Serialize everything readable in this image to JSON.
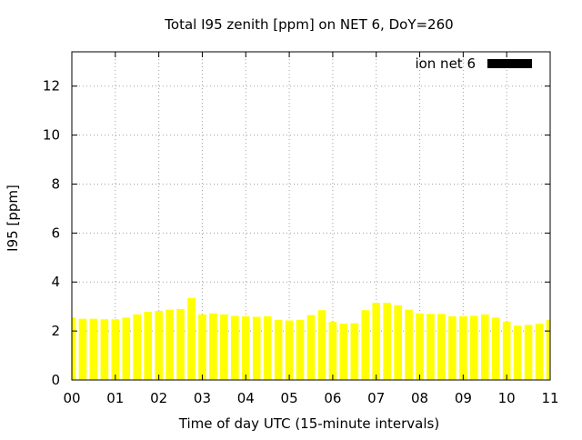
{
  "chart_data": {
    "type": "bar",
    "title": "Total I95 zenith [ppm] on NET 6, DoY=260",
    "xlabel": "Time of day UTC (15-minute intervals)",
    "ylabel": "I95 [ppm]",
    "xlim": [
      0,
      11
    ],
    "ylim": [
      0,
      13.4
    ],
    "x_ticks": [
      "00",
      "01",
      "02",
      "03",
      "04",
      "05",
      "06",
      "07",
      "08",
      "09",
      "10",
      "11"
    ],
    "y_ticks": [
      "0",
      "2",
      "4",
      "6",
      "8",
      "10",
      "12"
    ],
    "grid": true,
    "legend_position": "top-right",
    "series": [
      {
        "name": "ion net 6",
        "bar_color": "#ffff00",
        "legend_swatch_color": "#000000",
        "bin_hours": 0.25,
        "values": [
          2.55,
          2.5,
          2.5,
          2.48,
          2.48,
          2.55,
          2.68,
          2.78,
          2.82,
          2.87,
          2.9,
          3.35,
          2.68,
          2.72,
          2.68,
          2.62,
          2.6,
          2.58,
          2.6,
          2.45,
          2.43,
          2.45,
          2.65,
          2.85,
          2.37,
          2.3,
          2.32,
          2.85,
          3.15,
          3.15,
          3.05,
          2.87,
          2.72,
          2.7,
          2.7,
          2.6,
          2.6,
          2.62,
          2.68,
          2.55,
          2.38,
          2.22,
          2.25,
          2.3,
          2.45
        ]
      }
    ]
  }
}
